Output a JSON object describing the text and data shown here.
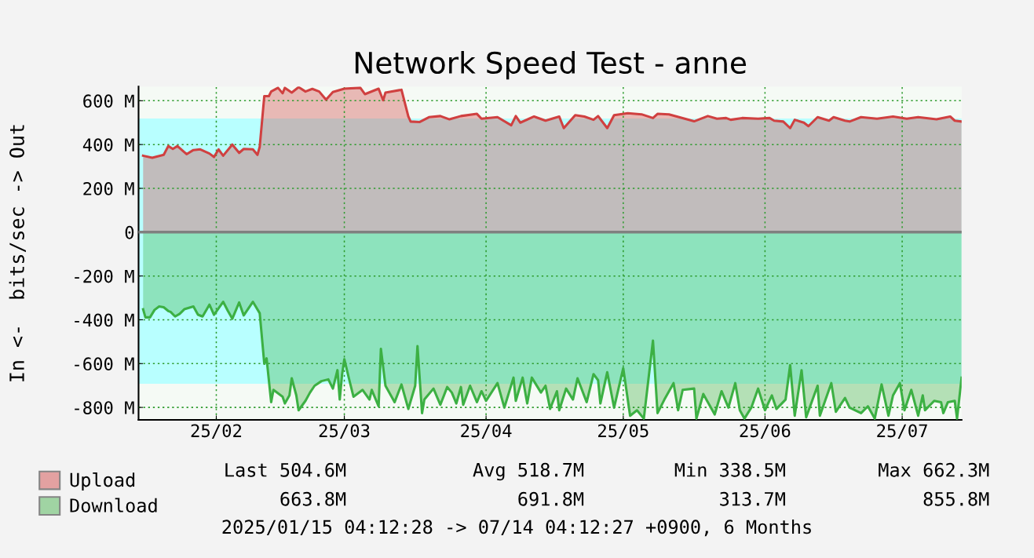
{
  "chart_data": {
    "type": "area",
    "title": "Network Speed Test - anne",
    "ylabel": "In <-  bits/sec -> Out",
    "xlim": [
      "2025-01-15",
      "2025-07-14"
    ],
    "xticks": [
      {
        "value": "2025-02-01",
        "label": "25/02"
      },
      {
        "value": "2025-03-01",
        "label": "25/03"
      },
      {
        "value": "2025-04-01",
        "label": "25/04"
      },
      {
        "value": "2025-05-01",
        "label": "25/05"
      },
      {
        "value": "2025-06-01",
        "label": "25/06"
      },
      {
        "value": "2025-07-01",
        "label": "25/07"
      }
    ],
    "ylim": [
      -857,
      665
    ],
    "yticks": [
      {
        "value": -800,
        "label": "-800 M"
      },
      {
        "value": -600,
        "label": "-600 M"
      },
      {
        "value": -400,
        "label": "-400 M"
      },
      {
        "value": -200,
        "label": "-200 M"
      },
      0,
      {
        "value": 200,
        "label": "200 M"
      },
      {
        "value": 400,
        "label": "400 M"
      },
      {
        "value": 600,
        "label": "600 M"
      }
    ],
    "grid": true,
    "legend": "bottom",
    "bands": [
      {
        "axis": "y",
        "from": 0,
        "to": 518.7,
        "color": "#b8ffff"
      },
      {
        "axis": "y",
        "from": -691.8,
        "to": 0,
        "color": "#b8ffff"
      }
    ],
    "ref_lines": [
      {
        "axis": "y",
        "value": 0,
        "color": "#808080"
      }
    ],
    "series": [
      {
        "name": "Upload",
        "color": "#d04040",
        "x": [
          "2025-01-16",
          "2025-01-18",
          "2025-01-20T12:00",
          "2025-01-21T12:00",
          "2025-01-22T12:00",
          "2025-01-23T12:00",
          "2025-01-25T12:00",
          "2025-01-27",
          "2025-01-28T12:00",
          "2025-01-30T12:00",
          "2025-01-31T12:00",
          "2025-02-01T12:00",
          "2025-02-02T12:00",
          "2025-02-04T12:00",
          "2025-02-06",
          "2025-02-07",
          "2025-02-09",
          "2025-02-10",
          "2025-02-10T12:00",
          "2025-02-11T12:00",
          "2025-02-12T12:00",
          "2025-02-13",
          "2025-02-14T12:00",
          "2025-02-15T12:00",
          "2025-02-16",
          "2025-02-17T12:00",
          "2025-02-19",
          "2025-02-20T12:00",
          "2025-02-22",
          "2025-02-23T12:00",
          "2025-02-25",
          "2025-02-26T12:00",
          "2025-03-01",
          "2025-03-04T12:00",
          "2025-03-05T12:00",
          "2025-03-08T12:00",
          "2025-03-09T12:00",
          "2025-03-10",
          "2025-03-13T12:00",
          "2025-03-15",
          "2025-03-15T12:00",
          "2025-03-17T12:00",
          "2025-03-19T12:00",
          "2025-03-22",
          "2025-03-24",
          "2025-03-26T12:00",
          "2025-03-30",
          "2025-03-31",
          "2025-04-03T12:00",
          "2025-04-06T12:00",
          "2025-04-07T12:00",
          "2025-04-08T12:00",
          "2025-04-11T12:00",
          "2025-04-14",
          "2025-04-17",
          "2025-04-18",
          "2025-04-20T12:00",
          "2025-04-22T12:00",
          "2025-04-24T12:00",
          "2025-04-25T12:00",
          "2025-04-27T12:00",
          "2025-04-29",
          "2025-05-02",
          "2025-05-05",
          "2025-05-07T12:00",
          "2025-05-08T12:00",
          "2025-05-11",
          "2025-05-16T12:00",
          "2025-05-19T12:00",
          "2025-05-21T12:00",
          "2025-05-23T12:00",
          "2025-05-24T12:00",
          "2025-05-27",
          "2025-05-30T12:00",
          "2025-06-02",
          "2025-06-03",
          "2025-06-05",
          "2025-06-06T12:00",
          "2025-06-07T12:00",
          "2025-06-09T12:00",
          "2025-06-10T12:00",
          "2025-06-12T12:00",
          "2025-06-15",
          "2025-06-16",
          "2025-06-18T12:00",
          "2025-06-19T12:00",
          "2025-06-22",
          "2025-06-25T12:00",
          "2025-06-29",
          "2025-07-02",
          "2025-07-04T12:00",
          "2025-07-08T12:00",
          "2025-07-11T12:00",
          "2025-07-12T12:00",
          "2025-07-14"
        ],
        "values": [
          349,
          340,
          353,
          393,
          380,
          393,
          356,
          375,
          378,
          359,
          343,
          378,
          349,
          400,
          362,
          380,
          378,
          353,
          390,
          621,
          621,
          642,
          659,
          634,
          659,
          637,
          662,
          642,
          654,
          642,
          605,
          640,
          655,
          659,
          630,
          655,
          602,
          637,
          650,
          528,
          505,
          503,
          525,
          530,
          515,
          530,
          540,
          518,
          525,
          488,
          530,
          500,
          528,
          509,
          528,
          475,
          534,
          528,
          513,
          530,
          475,
          534,
          543,
          538,
          521,
          540,
          538,
          506,
          530,
          518,
          521,
          513,
          521,
          518,
          521,
          509,
          505,
          475,
          513,
          500,
          484,
          525,
          509,
          525,
          509,
          505,
          525,
          518,
          528,
          518,
          525,
          515,
          528,
          509,
          505
        ]
      },
      {
        "name": "Download",
        "color": "#3cb043",
        "x": [
          "2025-01-16",
          "2025-01-16T12:00",
          "2025-01-17T12:00",
          "2025-01-18T12:00",
          "2025-01-19T12:00",
          "2025-01-20T12:00",
          "2025-01-21T12:00",
          "2025-01-22",
          "2025-01-23",
          "2025-01-24",
          "2025-01-25",
          "2025-01-27",
          "2025-01-28",
          "2025-01-29",
          "2025-01-30T12:00",
          "2025-01-31T12:00",
          "2025-02-02T12:00",
          "2025-02-03T12:00",
          "2025-02-04T12:00",
          "2025-02-06",
          "2025-02-07",
          "2025-02-09",
          "2025-02-10T12:00",
          "2025-02-11T12:00",
          "2025-02-12",
          "2025-02-13",
          "2025-02-13T12:00",
          "2025-02-15T12:00",
          "2025-02-16",
          "2025-02-17",
          "2025-02-17T12:00",
          "2025-02-18T12:00",
          "2025-02-19",
          "2025-02-20T12:00",
          "2025-02-21T12:00",
          "2025-02-22T12:00",
          "2025-02-24",
          "2025-02-25T12:00",
          "2025-02-26T12:00",
          "2025-02-27T12:00",
          "2025-02-28",
          "2025-02-28T12:00",
          "2025-03-01",
          "2025-03-02",
          "2025-03-03",
          "2025-03-05",
          "2025-03-06T12:00",
          "2025-03-07",
          "2025-03-08T12:00",
          "2025-03-09",
          "2025-03-10",
          "2025-03-12",
          "2025-03-13T12:00",
          "2025-03-15",
          "2025-03-16T12:00",
          "2025-03-17",
          "2025-03-18",
          "2025-03-18T12:00",
          "2025-03-20T12:00",
          "2025-03-22",
          "2025-03-23T12:00",
          "2025-03-24T12:00",
          "2025-03-25T12:00",
          "2025-03-26T12:00",
          "2025-03-27",
          "2025-03-28T12:00",
          "2025-03-30",
          "2025-03-31",
          "2025-04-01",
          "2025-04-03T12:00",
          "2025-04-05",
          "2025-04-07",
          "2025-04-07T12:00",
          "2025-04-09",
          "2025-04-10",
          "2025-04-11",
          "2025-04-13",
          "2025-04-14",
          "2025-04-15",
          "2025-04-16T12:00",
          "2025-04-17",
          "2025-04-18T12:00",
          "2025-04-20",
          "2025-04-21",
          "2025-04-23",
          "2025-04-24T12:00",
          "2025-04-25T12:00",
          "2025-04-26",
          "2025-04-27T12:00",
          "2025-04-29",
          "2025-05-01",
          "2025-05-02T12:00",
          "2025-05-04",
          "2025-05-05T12:00",
          "2025-05-07T12:00",
          "2025-05-08T12:00",
          "2025-05-10",
          "2025-05-12",
          "2025-05-13",
          "2025-05-14",
          "2025-05-16T12:00",
          "2025-05-17",
          "2025-05-18T12:00",
          "2025-05-21",
          "2025-05-22T12:00",
          "2025-05-24",
          "2025-05-25T12:00",
          "2025-05-26T12:00",
          "2025-05-27T12:00",
          "2025-05-29",
          "2025-05-30T12:00",
          "2025-06-01",
          "2025-06-02T12:00",
          "2025-06-03T12:00",
          "2025-06-05T12:00",
          "2025-06-06T12:00",
          "2025-06-07T12:00",
          "2025-06-09",
          "2025-06-10",
          "2025-06-12T12:00",
          "2025-06-13",
          "2025-06-15T12:00",
          "2025-06-16T12:00",
          "2025-06-18T12:00",
          "2025-06-19T12:00",
          "2025-06-22",
          "2025-06-23T12:00",
          "2025-06-25",
          "2025-06-26T12:00",
          "2025-06-28",
          "2025-06-29",
          "2025-06-30T12:00",
          "2025-07-01T12:00",
          "2025-07-03",
          "2025-07-04T12:00",
          "2025-07-05T12:00",
          "2025-07-06",
          "2025-07-08",
          "2025-07-09T12:00",
          "2025-07-10",
          "2025-07-11",
          "2025-07-12T12:00",
          "2025-07-13",
          "2025-07-14"
        ],
        "values": [
          -352,
          -389,
          -389,
          -355,
          -339,
          -343,
          -360,
          -364,
          -385,
          -373,
          -352,
          -339,
          -377,
          -385,
          -331,
          -377,
          -318,
          -358,
          -395,
          -321,
          -380,
          -318,
          -370,
          -601,
          -576,
          -776,
          -720,
          -751,
          -782,
          -745,
          -667,
          -745,
          -813,
          -770,
          -732,
          -701,
          -680,
          -672,
          -714,
          -630,
          -764,
          -651,
          -580,
          -667,
          -751,
          -720,
          -764,
          -720,
          -795,
          -533,
          -701,
          -776,
          -695,
          -807,
          -701,
          -520,
          -826,
          -764,
          -714,
          -788,
          -707,
          -732,
          -782,
          -707,
          -788,
          -701,
          -776,
          -726,
          -770,
          -689,
          -801,
          -664,
          -770,
          -664,
          -782,
          -664,
          -732,
          -701,
          -807,
          -726,
          -813,
          -714,
          -764,
          -667,
          -776,
          -648,
          -676,
          -782,
          -639,
          -801,
          -621,
          -838,
          -813,
          -851,
          -495,
          -826,
          -764,
          -689,
          -813,
          -720,
          -714,
          -851,
          -739,
          -832,
          -726,
          -801,
          -689,
          -813,
          -851,
          -801,
          -714,
          -813,
          -745,
          -807,
          -764,
          -607,
          -838,
          -630,
          -845,
          -701,
          -838,
          -689,
          -820,
          -757,
          -801,
          -826,
          -795,
          -851,
          -695,
          -838,
          -745,
          -689,
          -813,
          -720,
          -838,
          -745,
          -813,
          -770,
          -776,
          -826,
          -776,
          -770,
          -851,
          -664
        ]
      }
    ],
    "annotations": [
      "Last 504.6M",
      "Avg 518.7M",
      "Min 338.5M",
      "Max 662.3M",
      "663.8M",
      "691.8M",
      "313.7M",
      "855.8M",
      "2025/01/15 04:12:28 -> 07/14 04:12:27 +0900, 6 Months"
    ]
  }
}
